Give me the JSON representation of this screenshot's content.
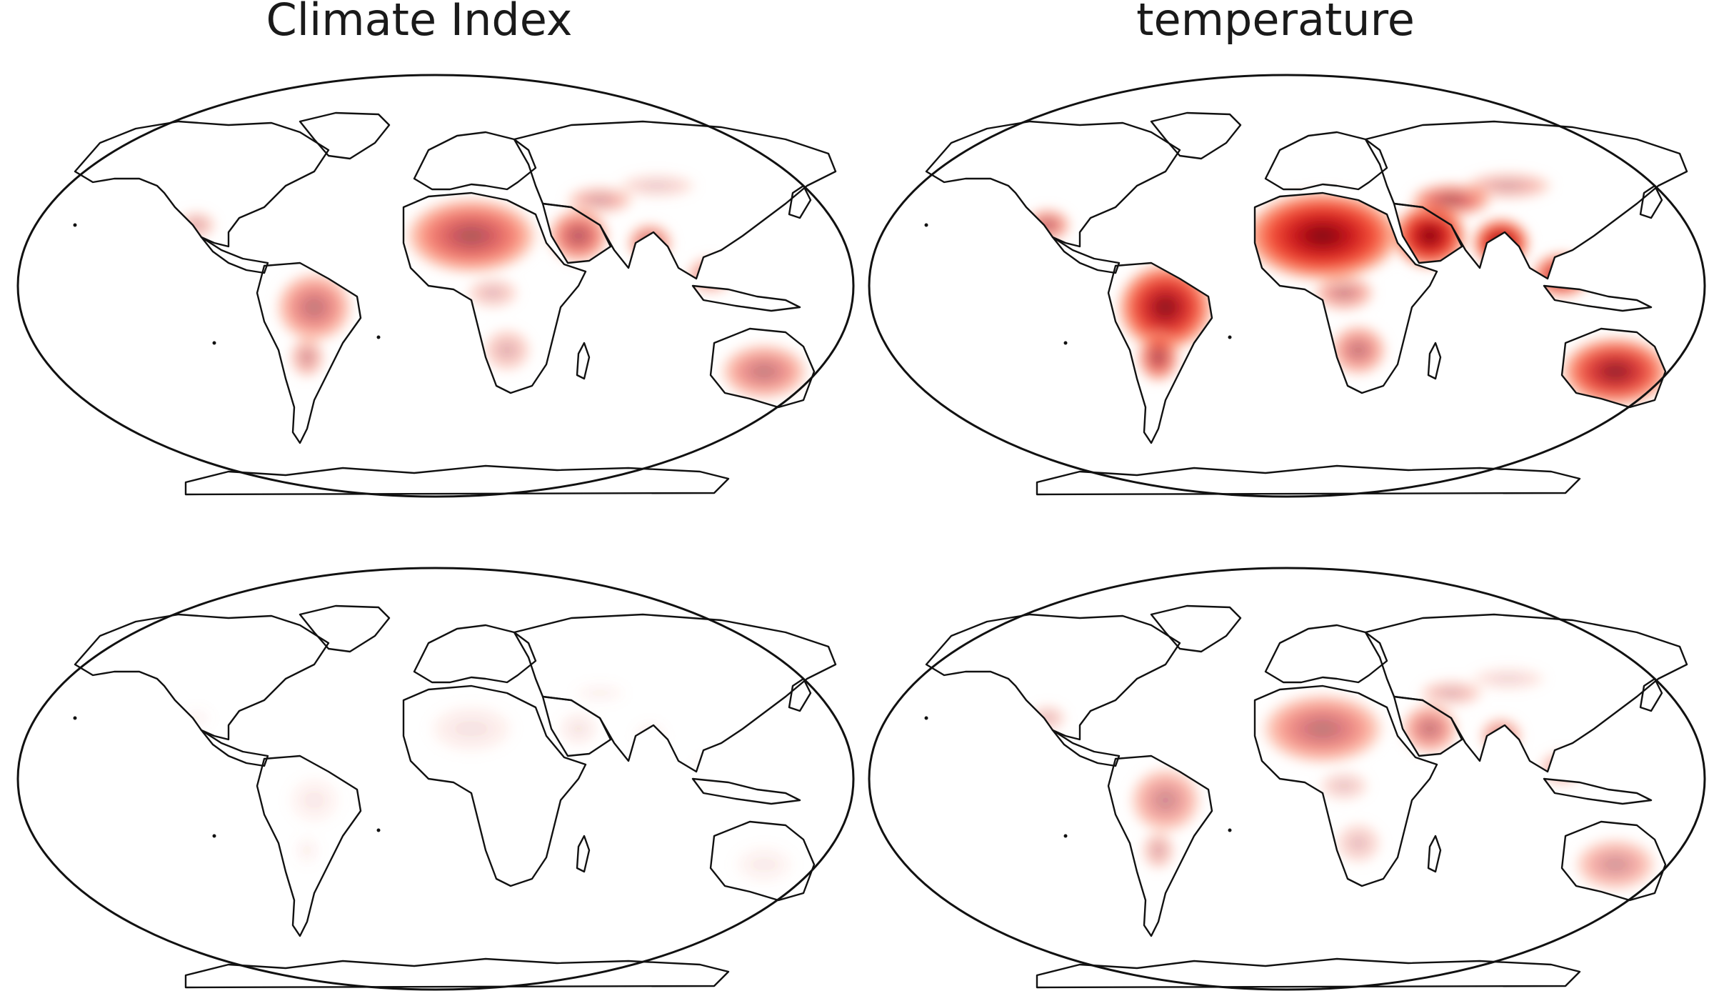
{
  "columns": {
    "left_title": "Climate Index",
    "right_title": "temperature"
  },
  "panels": [
    {
      "id": "panel-tl",
      "row": 1,
      "column": "left",
      "intensity": 0.55
    },
    {
      "id": "panel-tr",
      "row": 1,
      "column": "right",
      "intensity": 0.95
    },
    {
      "id": "panel-bl",
      "row": 2,
      "column": "left",
      "intensity": 0.08
    },
    {
      "id": "panel-br",
      "row": 2,
      "column": "right",
      "intensity": 0.45
    }
  ],
  "colormap": {
    "name": "Reds",
    "stops": [
      "#ffffff",
      "#fde0d3",
      "#fcaa8c",
      "#f6553c",
      "#cb181d",
      "#7a0510"
    ]
  },
  "projection": "robinson"
}
